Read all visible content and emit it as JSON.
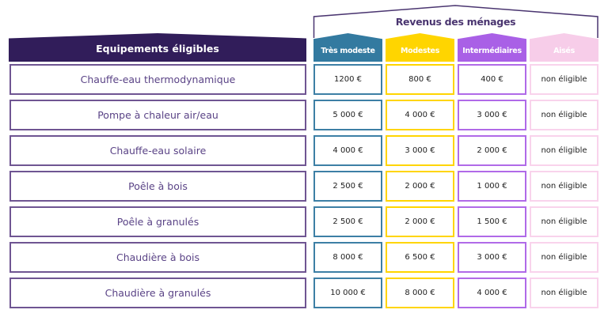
{
  "header": {
    "equipment_title": "Equipements éligibles",
    "income_title": "Revenus des ménages",
    "columns": [
      {
        "label": "Très modeste",
        "color": "#337aa0"
      },
      {
        "label": "Modestes",
        "color": "#ffd500"
      },
      {
        "label": "Intermédiaires",
        "color": "#a960e6"
      },
      {
        "label": "Aisés",
        "color": "#f7cde9"
      }
    ]
  },
  "rows": [
    {
      "equipment": "Chauffe-eau thermodynamique",
      "values": [
        "1200 €",
        "800 €",
        "400 €",
        "non éligible"
      ]
    },
    {
      "equipment": "Pompe à chaleur air/eau",
      "values": [
        "5 000 €",
        "4 000 €",
        "3 000 €",
        "non éligible"
      ]
    },
    {
      "equipment": "Chauffe-eau solaire",
      "values": [
        "4 000 €",
        "3 000 €",
        "2 000 €",
        "non éligible"
      ]
    },
    {
      "equipment": "Poêle à bois",
      "values": [
        "2 500 €",
        "2 000 €",
        "1 000 €",
        "non éligible"
      ]
    },
    {
      "equipment": "Poêle à granulés",
      "values": [
        "2 500 €",
        "2 000 €",
        "1 500 €",
        "non éligible"
      ]
    },
    {
      "equipment": "Chaudière à bois",
      "values": [
        "8 000 €",
        "6 500 €",
        "3 000 €",
        "non éligible"
      ]
    },
    {
      "equipment": "Chaudière à granulés",
      "values": [
        "10 000 €",
        "8 000 €",
        "4 000 €",
        "non éligible"
      ]
    }
  ]
}
